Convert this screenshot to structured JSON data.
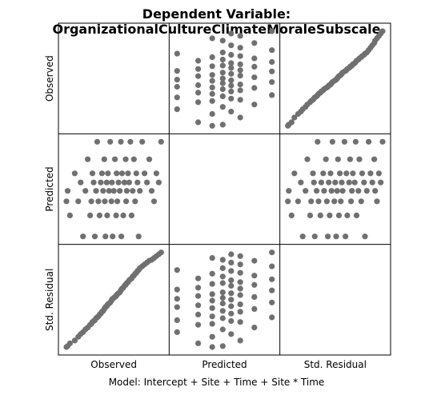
{
  "chart_data": {
    "type": "scatter",
    "title": "Dependent Variable: OrganizationalCultureClimateMoraleSubscale",
    "footnote": "Model: Intercept + Site + Time + Site * Time",
    "variables": [
      "Observed",
      "Predicted",
      "Std. Residual"
    ],
    "point_color": "#707070",
    "grid": false,
    "matrix": "3x3 scatterplot matrix, diagonal cells empty",
    "predicted_levels": [
      2.05,
      2.35,
      2.55,
      2.7,
      2.82,
      2.95,
      3.15,
      3.4
    ],
    "points": [
      {
        "observed": 1.0,
        "predicted": 2.55,
        "std_residual": -2.6
      },
      {
        "observed": 1.05,
        "predicted": 2.7,
        "std_residual": -2.55
      },
      {
        "observed": 1.15,
        "predicted": 2.35,
        "std_residual": -2.4
      },
      {
        "observed": 1.35,
        "predicted": 2.95,
        "std_residual": -2.25
      },
      {
        "observed": 1.5,
        "predicted": 2.55,
        "std_residual": -2.05
      },
      {
        "observed": 1.6,
        "predicted": 2.82,
        "std_residual": -1.9
      },
      {
        "observed": 1.7,
        "predicted": 2.05,
        "std_residual": -1.8
      },
      {
        "observed": 1.8,
        "predicted": 2.7,
        "std_residual": -1.65
      },
      {
        "observed": 1.9,
        "predicted": 3.15,
        "std_residual": -1.55
      },
      {
        "observed": 2.0,
        "predicted": 2.35,
        "std_residual": -1.4
      },
      {
        "observed": 2.05,
        "predicted": 2.55,
        "std_residual": -1.35
      },
      {
        "observed": 2.1,
        "predicted": 2.95,
        "std_residual": -1.25
      },
      {
        "observed": 2.15,
        "predicted": 2.82,
        "std_residual": -1.2
      },
      {
        "observed": 2.2,
        "predicted": 2.05,
        "std_residual": -1.15
      },
      {
        "observed": 2.25,
        "predicted": 2.7,
        "std_residual": -1.05
      },
      {
        "observed": 2.3,
        "predicted": 3.4,
        "std_residual": -1.0
      },
      {
        "observed": 2.35,
        "predicted": 2.55,
        "std_residual": -0.95
      },
      {
        "observed": 2.4,
        "predicted": 2.35,
        "std_residual": -0.85
      },
      {
        "observed": 2.45,
        "predicted": 2.82,
        "std_residual": -0.8
      },
      {
        "observed": 2.5,
        "predicted": 2.95,
        "std_residual": -0.7
      },
      {
        "observed": 2.55,
        "predicted": 2.7,
        "std_residual": -0.65
      },
      {
        "observed": 2.6,
        "predicted": 3.15,
        "std_residual": -0.55
      },
      {
        "observed": 2.62,
        "predicted": 2.55,
        "std_residual": -0.5
      },
      {
        "observed": 2.65,
        "predicted": 2.05,
        "std_residual": -0.45
      },
      {
        "observed": 2.7,
        "predicted": 2.82,
        "std_residual": -0.4
      },
      {
        "observed": 2.72,
        "predicted": 2.35,
        "std_residual": -0.35
      },
      {
        "observed": 2.75,
        "predicted": 2.95,
        "std_residual": -0.3
      },
      {
        "observed": 2.8,
        "predicted": 2.7,
        "std_residual": -0.25
      },
      {
        "observed": 2.85,
        "predicted": 3.4,
        "std_residual": -0.2
      },
      {
        "observed": 2.9,
        "predicted": 2.55,
        "std_residual": -0.1
      },
      {
        "observed": 2.92,
        "predicted": 2.82,
        "std_residual": -0.05
      },
      {
        "observed": 2.95,
        "predicted": 2.05,
        "std_residual": 0.0
      },
      {
        "observed": 3.0,
        "predicted": 2.7,
        "std_residual": 0.05
      },
      {
        "observed": 3.05,
        "predicted": 3.15,
        "std_residual": 0.1
      },
      {
        "observed": 3.1,
        "predicted": 2.35,
        "std_residual": 0.15
      },
      {
        "observed": 3.12,
        "predicted": 2.95,
        "std_residual": 0.2
      },
      {
        "observed": 3.15,
        "predicted": 2.55,
        "std_residual": 0.25
      },
      {
        "observed": 3.2,
        "predicted": 2.82,
        "std_residual": 0.3
      },
      {
        "observed": 3.25,
        "predicted": 2.7,
        "std_residual": 0.35
      },
      {
        "observed": 3.3,
        "predicted": 3.4,
        "std_residual": 0.45
      },
      {
        "observed": 3.32,
        "predicted": 2.05,
        "std_residual": 0.5
      },
      {
        "observed": 3.35,
        "predicted": 2.95,
        "std_residual": 0.55
      },
      {
        "observed": 3.4,
        "predicted": 2.35,
        "std_residual": 0.6
      },
      {
        "observed": 3.45,
        "predicted": 2.82,
        "std_residual": 0.7
      },
      {
        "observed": 3.5,
        "predicted": 3.15,
        "std_residual": 0.75
      },
      {
        "observed": 3.52,
        "predicted": 2.55,
        "std_residual": 0.8
      },
      {
        "observed": 3.55,
        "predicted": 2.7,
        "std_residual": 0.85
      },
      {
        "observed": 3.6,
        "predicted": 2.95,
        "std_residual": 0.9
      },
      {
        "observed": 3.65,
        "predicted": 2.82,
        "std_residual": 1.0
      },
      {
        "observed": 3.7,
        "predicted": 3.4,
        "std_residual": 1.05
      },
      {
        "observed": 3.75,
        "predicted": 2.35,
        "std_residual": 1.1
      },
      {
        "observed": 3.8,
        "predicted": 2.7,
        "std_residual": 1.2
      },
      {
        "observed": 3.85,
        "predicted": 3.15,
        "std_residual": 1.25
      },
      {
        "observed": 3.9,
        "predicted": 2.55,
        "std_residual": 1.35
      },
      {
        "observed": 3.95,
        "predicted": 2.95,
        "std_residual": 1.4
      },
      {
        "observed": 4.0,
        "predicted": 2.82,
        "std_residual": 1.5
      },
      {
        "observed": 4.05,
        "predicted": 2.05,
        "std_residual": 1.55
      },
      {
        "observed": 4.1,
        "predicted": 2.7,
        "std_residual": 1.65
      },
      {
        "observed": 4.2,
        "predicted": 3.4,
        "std_residual": 1.75
      },
      {
        "observed": 4.3,
        "predicted": 2.95,
        "std_residual": 1.85
      },
      {
        "observed": 4.4,
        "predicted": 2.82,
        "std_residual": 1.95
      },
      {
        "observed": 4.5,
        "predicted": 3.15,
        "std_residual": 2.05
      },
      {
        "observed": 4.6,
        "predicted": 2.7,
        "std_residual": 2.1
      },
      {
        "observed": 4.7,
        "predicted": 2.55,
        "std_residual": 2.2
      },
      {
        "observed": 4.8,
        "predicted": 2.95,
        "std_residual": 2.3
      },
      {
        "observed": 4.9,
        "predicted": 2.82,
        "std_residual": 2.4
      },
      {
        "observed": 5.0,
        "predicted": 3.4,
        "std_residual": 2.5
      }
    ]
  }
}
